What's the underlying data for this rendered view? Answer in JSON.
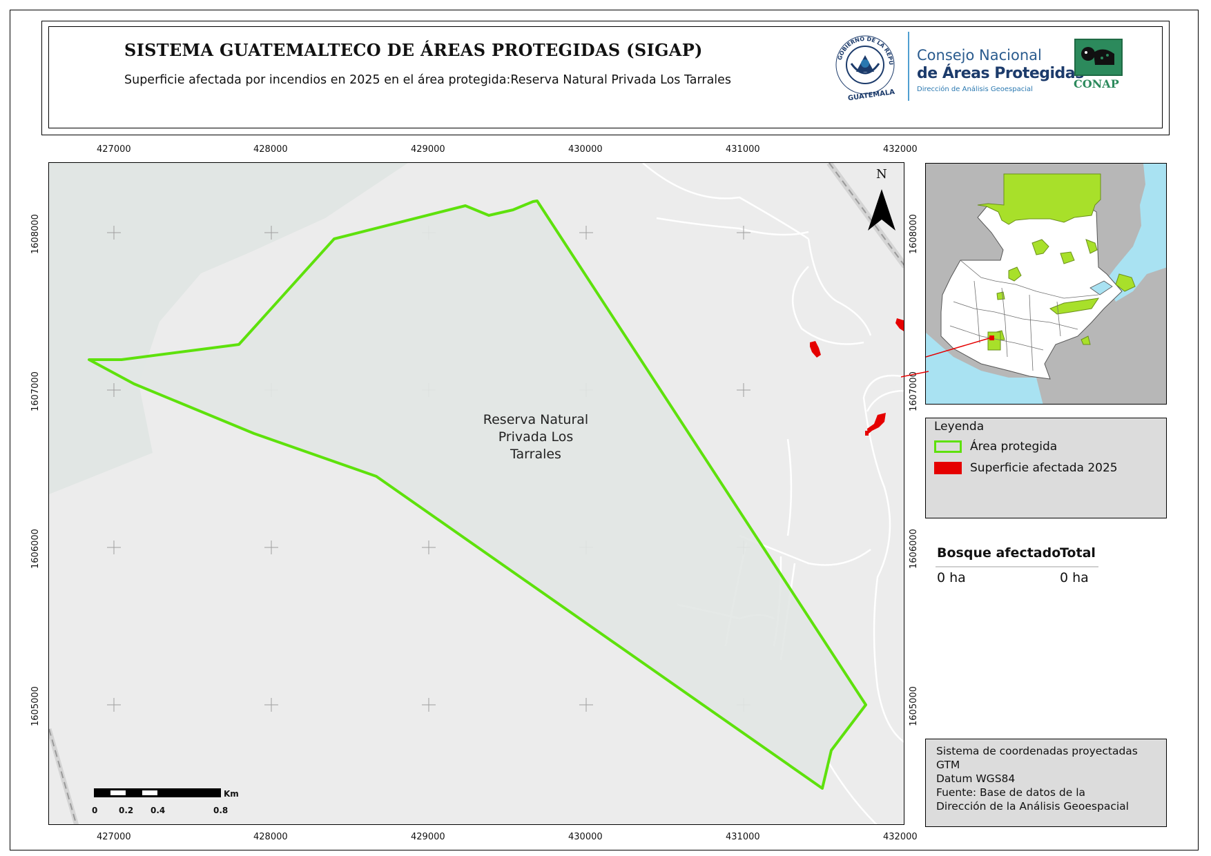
{
  "header": {
    "title": "SISTEMA GUATEMALTECO DE ÁREAS PROTEGIDAS  (SIGAP)",
    "subtitle": "Superficie afectada por incendios en 2025 en el área protegida:Reserva Natural Privada Los Tarrales"
  },
  "logos": {
    "seal_text": "GOBIERNO DE LA REPÚBLICA · GUATEMALA",
    "conap_line1": "Consejo Nacional",
    "conap_line2": "de Áreas Protegidas",
    "conap_line3": "Dirección de Análisis Geoespacial",
    "conap_word": "CONAP"
  },
  "map": {
    "x_ticks": [
      "427000",
      "428000",
      "429000",
      "430000",
      "431000",
      "432000"
    ],
    "y_ticks": [
      "1608000",
      "1607000",
      "1606000",
      "1605000"
    ],
    "area_label": [
      "Reserva Natural",
      "Privada Los",
      "Tarrales"
    ],
    "north_label": "N",
    "colors": {
      "protected_area_outline": "#5ee10c",
      "affected_surface": "#e50000",
      "background": "#ececec"
    }
  },
  "scalebar": {
    "labels": [
      "0",
      "0.2",
      "0.4",
      "0.8"
    ],
    "unit": "Km"
  },
  "legend": {
    "title": "Leyenda",
    "items": [
      {
        "label": "Área protegida",
        "color": "#5ee10c",
        "symbol": "outline"
      },
      {
        "label": "Superficie afectada 2025",
        "color": "#e50000",
        "symbol": "fill"
      }
    ]
  },
  "summary_table": {
    "headers": [
      "Bosque afectado",
      "Total"
    ],
    "values": [
      "0 ha",
      "0 ha"
    ]
  },
  "info_box": {
    "lines": [
      "Sistema de coordenadas proyectadas",
      "GTM",
      "Datum WGS84",
      "Fuente: Base de datos de la",
      "Dirección de la Análisis Geoespacial"
    ]
  }
}
